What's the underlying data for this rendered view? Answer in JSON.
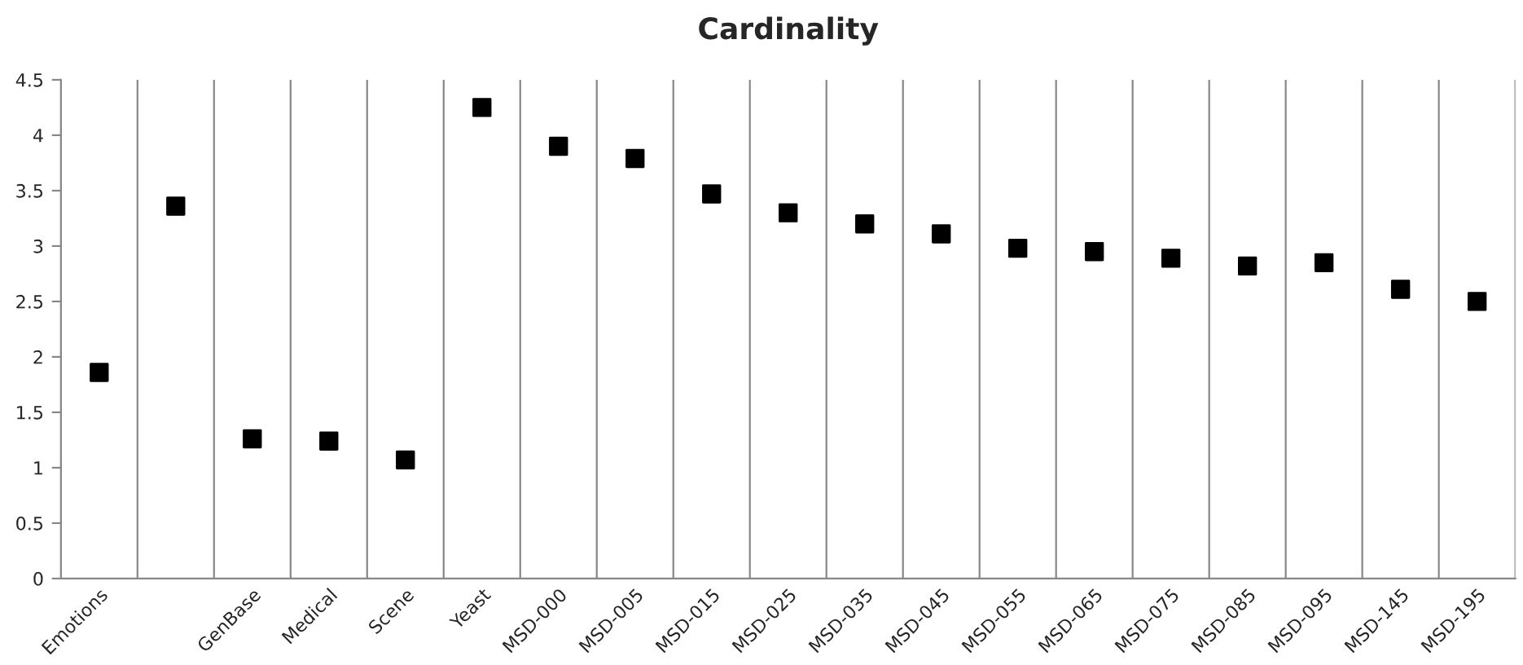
{
  "chart_data": {
    "type": "scatter",
    "title": "Cardinality",
    "categories": [
      "Emotions",
      null,
      "GenBase",
      "Medical",
      "Scene",
      "Yeast",
      "MSD-000",
      "MSD-005",
      "MSD-015",
      "MSD-025",
      "MSD-035",
      "MSD-045",
      "MSD-055",
      "MSD-065",
      "MSD-075",
      "MSD-085",
      "MSD-095",
      "MSD-145",
      "MSD-195"
    ],
    "series": [
      {
        "color": "#000000",
        "values": [
          1.86,
          3.36,
          1.26,
          1.24,
          1.07,
          4.25,
          3.9,
          3.79,
          3.47,
          3.3,
          3.2,
          3.11,
          2.98,
          2.95,
          2.89,
          2.82,
          2.85,
          2.61,
          2.5
        ]
      }
    ],
    "ylim": [
      0,
      4.5
    ],
    "yticks": [
      0,
      0.5,
      1,
      1.5,
      2,
      2.5,
      3,
      3.5,
      4,
      4.5
    ],
    "grid": "x",
    "marker": "square",
    "legend": false
  }
}
